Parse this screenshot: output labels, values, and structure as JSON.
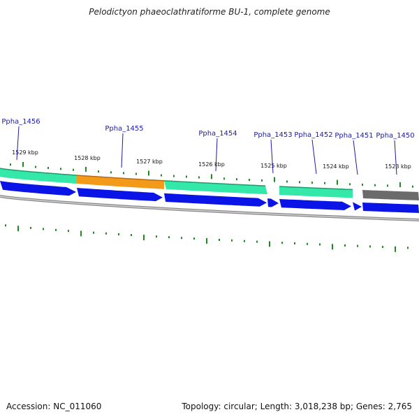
{
  "title": "Pelodictyon phaeoclathratiforme BU-1, complete genome",
  "footer": {
    "accession": "Accession: NC_011060",
    "summary": "Topology: circular; Length: 3,018,238 bp; Genes: 2,765"
  },
  "colors": {
    "cds_green": "#33e8a8",
    "cds_orange": "#f39a1a",
    "cds_gray": "#6b6b6b",
    "forward_blue": "#0a14e6",
    "backbone_gray": "#8a8a8a",
    "tick_green": "#1f8a1f",
    "label_blue": "#1a1aa0"
  },
  "kbp_labels": [
    "1529 kbp",
    "1528 kbp",
    "1527 kbp",
    "1526 kbp",
    "1525 kbp",
    "1524 kbp",
    "1523 kbp"
  ],
  "genes": [
    {
      "locus": "Ppha_1456"
    },
    {
      "locus": "Ppha_1455"
    },
    {
      "locus": "Ppha_1454"
    },
    {
      "locus": "Ppha_1453"
    },
    {
      "locus": "Ppha_1452"
    },
    {
      "locus": "Ppha_1451"
    },
    {
      "locus": "Ppha_1450"
    }
  ]
}
